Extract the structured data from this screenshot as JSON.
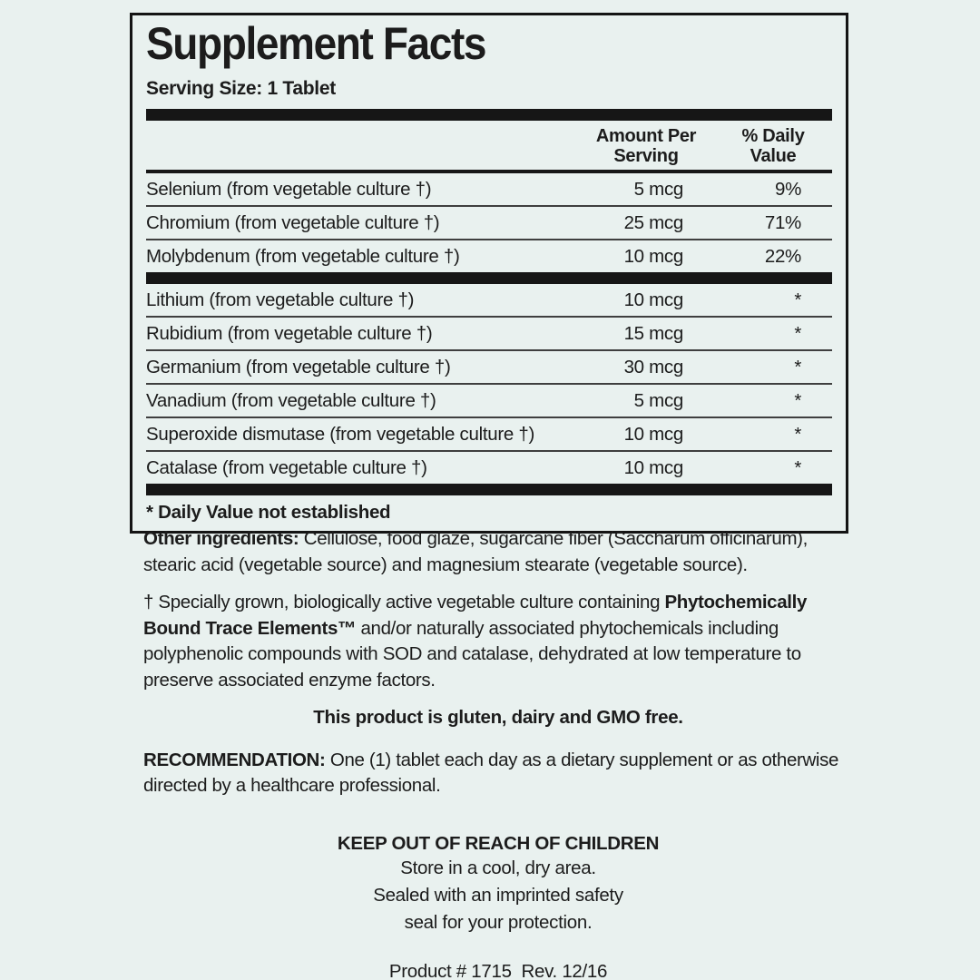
{
  "colors": {
    "background": "#e9f1ef",
    "ink": "#1c1c1c",
    "rule": "#3f3f3f",
    "bar": "#161616"
  },
  "panel": {
    "title": "Supplement Facts",
    "serving_size": "Serving Size: 1 Tablet",
    "headers": {
      "amount": [
        "Amount Per",
        "Serving"
      ],
      "daily_value": [
        "% Daily",
        "Value"
      ]
    },
    "rows": [
      {
        "name": "Selenium (from vegetable culture †)",
        "amount": "5 mcg",
        "daily_value": "9%"
      },
      {
        "name": "Chromium (from vegetable culture †)",
        "amount": "25 mcg",
        "daily_value": "71%"
      },
      {
        "name": "Molybdenum (from vegetable culture †)",
        "amount": "10 mcg",
        "daily_value": "22%"
      },
      {
        "name": "Lithium (from vegetable culture †)",
        "amount": "10 mcg",
        "daily_value": "*"
      },
      {
        "name": "Rubidium (from vegetable culture †)",
        "amount": "15 mcg",
        "daily_value": "*"
      },
      {
        "name": "Germanium (from vegetable culture †)",
        "amount": "30 mcg",
        "daily_value": "*"
      },
      {
        "name": "Vanadium (from vegetable culture †)",
        "amount": "5 mcg",
        "daily_value": "*"
      },
      {
        "name": "Superoxide dismutase (from vegetable culture †)",
        "amount": "10 mcg",
        "daily_value": "*"
      },
      {
        "name": "Catalase (from vegetable culture †)",
        "amount": "10 mcg",
        "daily_value": "*"
      }
    ],
    "footnote": "* Daily Value not established"
  },
  "sections": {
    "other_ingredients": {
      "label": "Other ingredients: ",
      "text": "Cellulose, food glaze, sugarcane fiber (Saccharum officinarum), stearic acid (vegetable source) and magnesium stearate (vegetable source)."
    },
    "dagger_note": {
      "pre": "† Specially grown, biologically active vegetable culture  containing ",
      "bold": "Phytochemically Bound Trace Elements™",
      "post": " and/or naturally associated phytochemicals including polyphenolic compounds with SOD and catalase, dehydrated at low temperature to preserve associated enzyme factors."
    },
    "free_claims": "This product is gluten, dairy and GMO free.",
    "recommendation": {
      "label": "RECOMMENDATION: ",
      "text": "One (1) tablet each day as a dietary supplement or as otherwise directed by a healthcare professional."
    },
    "warnings": {
      "heading": "KEEP OUT OF REACH OF CHILDREN",
      "lines": [
        "Store in a cool, dry area.",
        "Sealed with an imprinted safety",
        "seal for your protection."
      ]
    },
    "product_line": "Product # 1715  Rev. 12/16"
  }
}
